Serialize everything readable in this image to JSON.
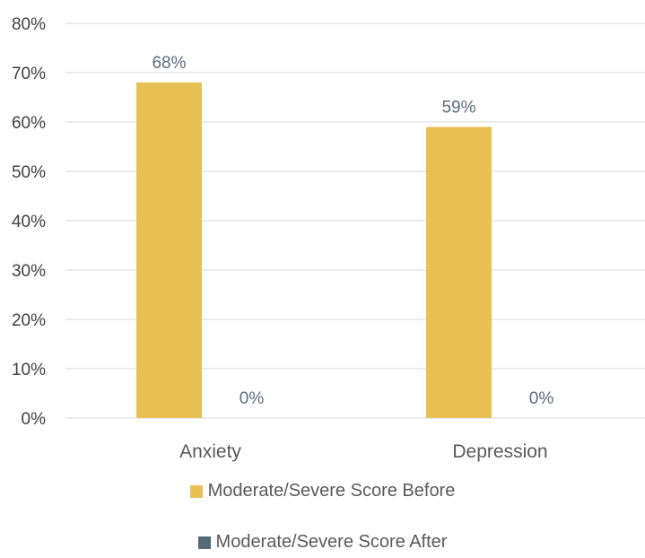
{
  "chart_data": {
    "type": "bar",
    "title": "",
    "xlabel": "",
    "ylabel": "",
    "categories": [
      "Anxiety",
      "Depression"
    ],
    "series": [
      {
        "name": "Moderate/Severe Score Before",
        "values": [
          68,
          59
        ],
        "labels": [
          "68%",
          "59%"
        ],
        "color": "#E9C053"
      },
      {
        "name": "Moderate/Severe Score After",
        "values": [
          0,
          0
        ],
        "labels": [
          "0%",
          "0%"
        ],
        "color": "#546A74"
      }
    ],
    "ylim": [
      0,
      80
    ],
    "y_ticks": [
      "0%",
      "10%",
      "20%",
      "30%",
      "40%",
      "50%",
      "60%",
      "70%",
      "80%"
    ],
    "grid": true,
    "legend_position": "bottom",
    "colors": {
      "grid": "#D9D9D9",
      "axis_text": "#404040",
      "category_text": "#595959",
      "data_label_text": "#5B6C7C"
    }
  }
}
